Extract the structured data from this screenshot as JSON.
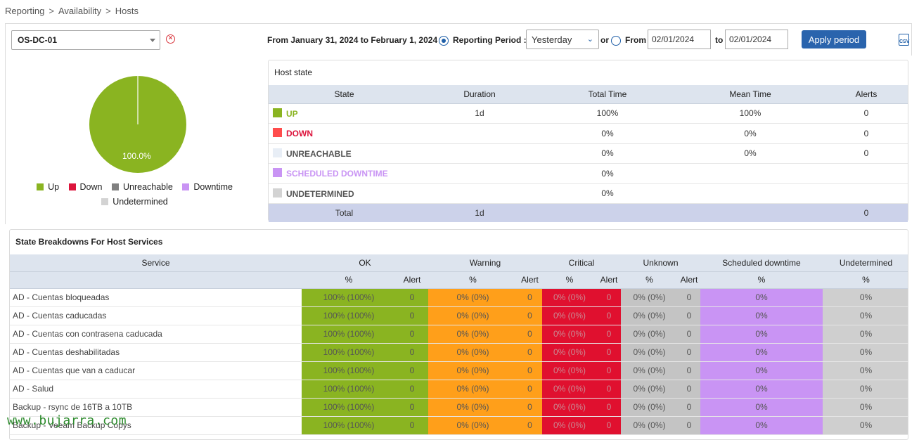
{
  "breadcrumb": {
    "items": [
      "Reporting",
      "Availability",
      "Hosts"
    ],
    "separator": ">"
  },
  "toolbar": {
    "host": "OS-DC-01",
    "period_text": "From January 31, 2024 to February 1, 2024",
    "reporting_period_label": "Reporting Period :",
    "reporting_period_value": "Yesterday",
    "or_label": "or",
    "from_label": "From",
    "from_date": "02/01/2024",
    "to_label": "to",
    "to_date": "02/01/2024",
    "apply_label": "Apply period",
    "csv_label": "CSV"
  },
  "pie": {
    "label": "100.0%",
    "up_percent": 100,
    "color": "#8ab421"
  },
  "legend": [
    {
      "label": "Up",
      "color": "#8ab421"
    },
    {
      "label": "Down",
      "color": "#dc143c"
    },
    {
      "label": "Unreachable",
      "color": "#808080"
    },
    {
      "label": "Downtime",
      "color": "#c994f4"
    },
    {
      "label": "Undetermined",
      "color": "#d3d3d3"
    }
  ],
  "host_state": {
    "title": "Host state",
    "headers": [
      "State",
      "Duration",
      "Total Time",
      "Mean Time",
      "Alerts"
    ],
    "rows": [
      {
        "state": "UP",
        "color": "#8ab421",
        "text_color": "#8ab421",
        "duration": "1d",
        "total": "100%",
        "mean": "100%",
        "alerts": "0"
      },
      {
        "state": "DOWN",
        "color": "#ff4c4c",
        "text_color": "#dc143c",
        "duration": "",
        "total": "0%",
        "mean": "0%",
        "alerts": "0"
      },
      {
        "state": "UNREACHABLE",
        "color": "#e8eef6",
        "text_color": "#555555",
        "duration": "",
        "total": "0%",
        "mean": "0%",
        "alerts": "0"
      },
      {
        "state": "SCHEDULED DOWNTIME",
        "color": "#c994f4",
        "text_color": "#c994f4",
        "duration": "",
        "total": "0%",
        "mean": "",
        "alerts": ""
      },
      {
        "state": "UNDETERMINED",
        "color": "#d3d3d3",
        "text_color": "#555555",
        "duration": "",
        "total": "0%",
        "mean": "",
        "alerts": ""
      }
    ],
    "total": {
      "label": "Total",
      "duration": "1d",
      "alerts": "0"
    }
  },
  "services": {
    "title": "State Breakdowns For Host Services",
    "group_headers": [
      "Service",
      "OK",
      "Warning",
      "Critical",
      "Unknown",
      "Scheduled downtime",
      "Undetermined"
    ],
    "sub_headers": [
      "%",
      "Alert",
      "%",
      "Alert",
      "%",
      "Alert",
      "%",
      "Alert",
      "%",
      "%"
    ],
    "rows": [
      {
        "name": "AD - Cuentas bloqueadas",
        "ok": "100% (100%)",
        "ok_a": "0",
        "warn": "0% (0%)",
        "warn_a": "0",
        "crit": "0% (0%)",
        "crit_a": "0",
        "unk": "0% (0%)",
        "unk_a": "0",
        "sched": "0%",
        "und": "0%"
      },
      {
        "name": "AD - Cuentas caducadas",
        "ok": "100% (100%)",
        "ok_a": "0",
        "warn": "0% (0%)",
        "warn_a": "0",
        "crit": "0% (0%)",
        "crit_a": "0",
        "unk": "0% (0%)",
        "unk_a": "0",
        "sched": "0%",
        "und": "0%"
      },
      {
        "name": "AD - Cuentas con contrasena caducada",
        "ok": "100% (100%)",
        "ok_a": "0",
        "warn": "0% (0%)",
        "warn_a": "0",
        "crit": "0% (0%)",
        "crit_a": "0",
        "unk": "0% (0%)",
        "unk_a": "0",
        "sched": "0%",
        "und": "0%"
      },
      {
        "name": "AD - Cuentas deshabilitadas",
        "ok": "100% (100%)",
        "ok_a": "0",
        "warn": "0% (0%)",
        "warn_a": "0",
        "crit": "0% (0%)",
        "crit_a": "0",
        "unk": "0% (0%)",
        "unk_a": "0",
        "sched": "0%",
        "und": "0%"
      },
      {
        "name": "AD - Cuentas que van a caducar",
        "ok": "100% (100%)",
        "ok_a": "0",
        "warn": "0% (0%)",
        "warn_a": "0",
        "crit": "0% (0%)",
        "crit_a": "0",
        "unk": "0% (0%)",
        "unk_a": "0",
        "sched": "0%",
        "und": "0%"
      },
      {
        "name": "AD - Salud",
        "ok": "100% (100%)",
        "ok_a": "0",
        "warn": "0% (0%)",
        "warn_a": "0",
        "crit": "0% (0%)",
        "crit_a": "0",
        "unk": "0% (0%)",
        "unk_a": "0",
        "sched": "0%",
        "und": "0%"
      },
      {
        "name": "Backup - rsync de 16TB a 10TB",
        "ok": "100% (100%)",
        "ok_a": "0",
        "warn": "0% (0%)",
        "warn_a": "0",
        "crit": "0% (0%)",
        "crit_a": "0",
        "unk": "0% (0%)",
        "unk_a": "0",
        "sched": "0%",
        "und": "0%"
      },
      {
        "name": "Backup - Veeam Backup Copys",
        "ok": "100% (100%)",
        "ok_a": "0",
        "warn": "0% (0%)",
        "warn_a": "0",
        "crit": "0% (0%)",
        "crit_a": "0",
        "unk": "0% (0%)",
        "unk_a": "0",
        "sched": "0%",
        "und": "0%"
      }
    ]
  },
  "watermark": "www.bujarra.com"
}
